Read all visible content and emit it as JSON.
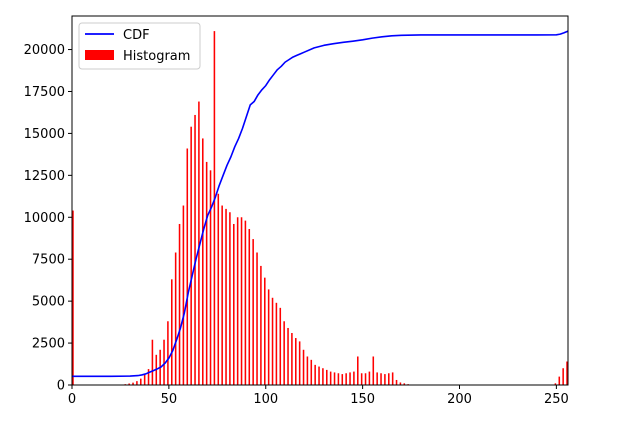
{
  "chart_data": {
    "type": "bar",
    "title": "",
    "xlabel": "",
    "ylabel": "",
    "xlim": [
      0,
      256
    ],
    "ylim": [
      0,
      22000
    ],
    "x_ticks": [
      0,
      50,
      100,
      150,
      200,
      250
    ],
    "y_ticks": [
      0,
      2500,
      5000,
      7500,
      10000,
      12500,
      15000,
      17500,
      20000
    ],
    "grid": false,
    "legend_position": "top-left",
    "series": [
      {
        "name": "CDF",
        "kind": "line",
        "color": "#0000ff",
        "x": [
          0,
          20,
          30,
          34,
          36,
          38,
          40,
          42,
          44,
          46,
          48,
          50,
          52,
          54,
          56,
          58,
          60,
          62,
          64,
          66,
          68,
          70,
          72,
          74,
          76,
          78,
          80,
          82,
          84,
          86,
          88,
          90,
          92,
          94,
          96,
          98,
          100,
          102,
          104,
          106,
          108,
          110,
          112,
          114,
          116,
          118,
          120,
          125,
          130,
          135,
          140,
          145,
          150,
          155,
          160,
          165,
          170,
          180,
          200,
          220,
          240,
          250,
          252,
          254,
          256
        ],
        "y": [
          520,
          520,
          530,
          560,
          600,
          660,
          760,
          860,
          960,
          1080,
          1300,
          1600,
          2050,
          2700,
          3400,
          4300,
          5500,
          6500,
          7500,
          8400,
          9300,
          10100,
          10600,
          11200,
          11900,
          12500,
          13100,
          13600,
          14200,
          14700,
          15300,
          16000,
          16700,
          16900,
          17300,
          17600,
          17850,
          18200,
          18500,
          18800,
          19000,
          19250,
          19400,
          19550,
          19650,
          19750,
          19850,
          20100,
          20250,
          20350,
          20430,
          20500,
          20580,
          20680,
          20760,
          20820,
          20850,
          20870,
          20870,
          20870,
          20870,
          20880,
          20920,
          21000,
          21100
        ]
      },
      {
        "name": "Histogram",
        "kind": "bar",
        "color": "#ff0000",
        "x": [
          0,
          25,
          27,
          29,
          31,
          33,
          35,
          37,
          39,
          41,
          43,
          45,
          47,
          49,
          51,
          53,
          55,
          57,
          59,
          61,
          63,
          65,
          67,
          69,
          71,
          73,
          75,
          77,
          79,
          81,
          83,
          85,
          87,
          89,
          91,
          93,
          95,
          97,
          99,
          101,
          103,
          105,
          107,
          109,
          111,
          113,
          115,
          117,
          119,
          121,
          123,
          125,
          127,
          129,
          131,
          133,
          135,
          137,
          139,
          141,
          143,
          145,
          147,
          149,
          151,
          153,
          155,
          157,
          159,
          161,
          163,
          165,
          167,
          169,
          171,
          173,
          249,
          251,
          253,
          255
        ],
        "y": [
          10400,
          30,
          50,
          90,
          140,
          230,
          380,
          600,
          950,
          2700,
          1800,
          2100,
          2700,
          3800,
          6300,
          7900,
          9600,
          10700,
          14100,
          15400,
          16100,
          16900,
          14700,
          13300,
          12800,
          21100,
          11400,
          10700,
          10500,
          10300,
          9600,
          10000,
          10000,
          9800,
          9300,
          8700,
          7900,
          7100,
          6400,
          5700,
          5200,
          4900,
          4600,
          3800,
          3400,
          3100,
          2800,
          2600,
          2100,
          1700,
          1500,
          1200,
          1100,
          1000,
          900,
          800,
          750,
          700,
          650,
          700,
          750,
          800,
          1700,
          700,
          700,
          800,
          1700,
          750,
          700,
          650,
          700,
          750,
          300,
          150,
          100,
          50,
          100,
          500,
          1000,
          1400
        ]
      }
    ]
  }
}
